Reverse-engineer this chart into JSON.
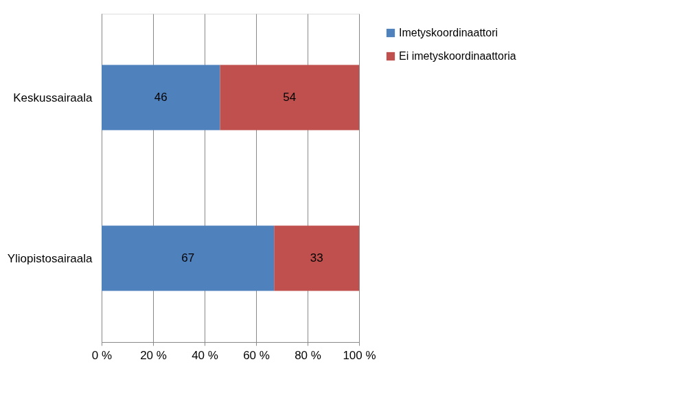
{
  "chart_data": {
    "type": "bar",
    "orientation": "horizontal",
    "stacked": true,
    "categories": [
      "Keskussairaala",
      "Yliopistosairaala"
    ],
    "series": [
      {
        "name": "Imetyskoordinaattori",
        "color": "#4f81bd",
        "values": [
          46,
          67
        ]
      },
      {
        "name": "Ei imetyskoordinaattoria",
        "color": "#c0504d",
        "values": [
          54,
          33
        ]
      }
    ],
    "xlim": [
      0,
      100
    ],
    "xticks": [
      {
        "value": 0,
        "label": "0 %"
      },
      {
        "value": 20,
        "label": "20 %"
      },
      {
        "value": 40,
        "label": "40 %"
      },
      {
        "value": 60,
        "label": "60 %"
      },
      {
        "value": 80,
        "label": "80 %"
      },
      {
        "value": 100,
        "label": "100 %"
      }
    ],
    "grid": "x",
    "legend": "right",
    "data_labels": true
  }
}
